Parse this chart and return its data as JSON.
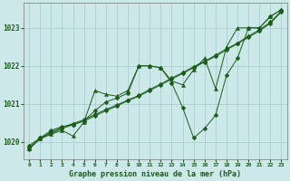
{
  "title": "Graphe pression niveau de la mer (hPa)",
  "background_color": "#cce8e8",
  "grid_color": "#aacfcf",
  "line_color": "#1a5c1a",
  "xlim": [
    -0.5,
    23.5
  ],
  "ylim": [
    1019.55,
    1023.65
  ],
  "yticks": [
    1020,
    1021,
    1022,
    1023
  ],
  "xticks": [
    0,
    1,
    2,
    3,
    4,
    5,
    6,
    7,
    8,
    9,
    10,
    11,
    12,
    13,
    14,
    15,
    16,
    17,
    18,
    19,
    20,
    21,
    22,
    23
  ],
  "lines": [
    {
      "x": [
        0,
        1,
        2,
        3,
        4,
        5,
        6,
        7,
        8,
        9,
        10,
        11,
        12,
        13,
        14,
        15,
        16,
        17,
        18,
        19,
        20,
        21,
        22,
        23
      ],
      "y": [
        1019.9,
        1020.1,
        1020.25,
        1020.38,
        1020.48,
        1020.58,
        1020.72,
        1020.85,
        1020.97,
        1021.1,
        1021.22,
        1021.38,
        1021.52,
        1021.68,
        1021.82,
        1021.98,
        1022.12,
        1022.28,
        1022.45,
        1022.6,
        1022.78,
        1022.95,
        1023.15,
        1023.45
      ],
      "marker": "D",
      "markersize": 2.5
    },
    {
      "x": [
        0,
        1,
        2,
        3,
        4,
        5,
        6,
        7,
        8,
        9,
        10,
        11,
        12,
        13,
        14,
        15,
        16,
        17,
        18,
        19,
        20,
        21,
        22,
        23
      ],
      "y": [
        1019.85,
        1020.08,
        1020.22,
        1020.35,
        1020.45,
        1020.55,
        1020.68,
        1020.82,
        1020.94,
        1021.08,
        1021.2,
        1021.35,
        1021.5,
        1021.65,
        1021.8,
        1021.95,
        1022.1,
        1022.25,
        1022.42,
        1022.58,
        1022.75,
        1022.92,
        1023.12,
        1023.42
      ],
      "marker": "D",
      "markersize": 2.5
    },
    {
      "x": [
        0,
        1,
        2,
        3,
        4,
        5,
        6,
        7,
        8,
        9,
        10,
        11,
        12,
        13,
        14,
        15,
        16,
        17,
        18,
        19,
        20,
        21,
        22,
        23
      ],
      "y": [
        1019.82,
        1020.08,
        1020.2,
        1020.3,
        1020.15,
        1020.52,
        1021.35,
        1021.25,
        1021.2,
        1021.35,
        1022.0,
        1022.0,
        1021.95,
        1021.6,
        1021.5,
        1021.9,
        1022.2,
        1021.4,
        1022.5,
        1023.0,
        1023.0,
        1023.0,
        1023.3,
        1023.48
      ],
      "marker": "^",
      "markersize": 3.0
    },
    {
      "x": [
        0,
        1,
        2,
        3,
        4,
        5,
        6,
        7,
        8,
        9,
        10,
        11,
        12,
        13,
        14,
        15,
        16,
        17,
        18,
        19,
        20,
        21,
        22,
        23
      ],
      "y": [
        1019.8,
        1020.1,
        1020.3,
        1020.4,
        1020.45,
        1020.55,
        1020.82,
        1021.05,
        1021.15,
        1021.28,
        1022.0,
        1022.0,
        1021.95,
        1021.55,
        1020.9,
        1020.1,
        1020.35,
        1020.7,
        1021.75,
        1022.2,
        1023.0,
        1023.0,
        1023.3,
        1023.48
      ],
      "marker": "D",
      "markersize": 2.5
    }
  ]
}
